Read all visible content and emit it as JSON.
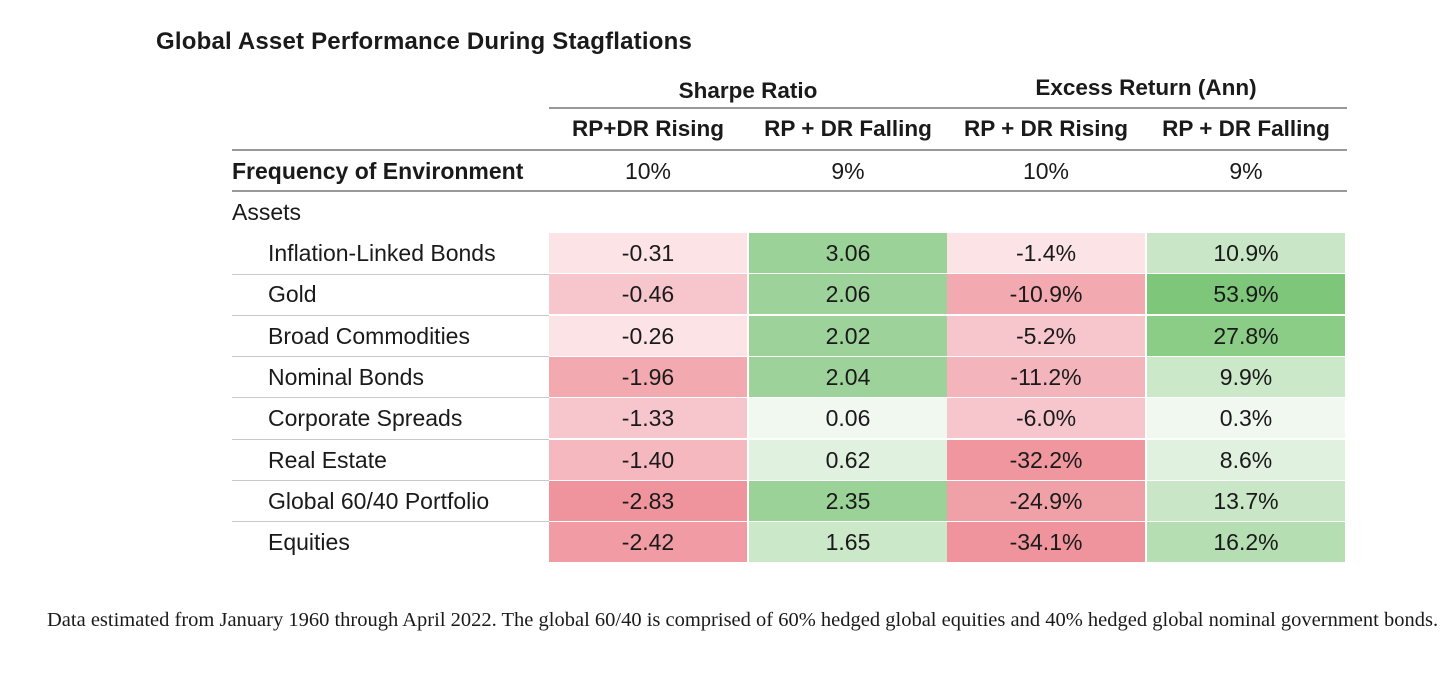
{
  "chart_data": {
    "type": "table",
    "title": "Global Asset Performance During Stagflations",
    "group_headers": [
      "Sharpe Ratio",
      "Excess Return (Ann)"
    ],
    "columns": [
      "RP+DR Rising",
      "RP + DR Falling",
      "RP + DR Rising",
      "RP + DR Falling"
    ],
    "frequency_row": {
      "label": "Frequency of Environment",
      "values": [
        "10%",
        "9%",
        "10%",
        "9%"
      ]
    },
    "section_label": "Assets",
    "rows": [
      {
        "label": "Inflation-Linked Bonds",
        "values": [
          "-0.31",
          "3.06",
          "-1.4%",
          "10.9%"
        ],
        "colors": [
          "#fbe3e6",
          "#9bd298",
          "#fbe3e6",
          "#c9e7c7"
        ]
      },
      {
        "label": "Gold",
        "values": [
          "-0.46",
          "2.06",
          "-10.9%",
          "53.9%"
        ],
        "colors": [
          "#f7c6cc",
          "#9dd39a",
          "#f3a9b0",
          "#7ec67a"
        ]
      },
      {
        "label": "Broad Commodities",
        "values": [
          "-0.26",
          "2.02",
          "-5.2%",
          "27.8%"
        ],
        "colors": [
          "#fbe3e6",
          "#9dd39a",
          "#f7c6cc",
          "#8bcc87"
        ]
      },
      {
        "label": "Nominal Bonds",
        "values": [
          "-1.96",
          "2.04",
          "-11.2%",
          "9.9%"
        ],
        "colors": [
          "#f3a9b0",
          "#9dd39a",
          "#f3b5bb",
          "#cbe8c9"
        ]
      },
      {
        "label": "Corporate Spreads",
        "values": [
          "-1.33",
          "0.06",
          "-6.0%",
          "0.3%"
        ],
        "colors": [
          "#f7c6cc",
          "#f1f8f0",
          "#f7c6cc",
          "#f1f8f0"
        ]
      },
      {
        "label": "Real Estate",
        "values": [
          "-1.40",
          "0.62",
          "-32.2%",
          "8.6%"
        ],
        "colors": [
          "#f5b8be",
          "#e1f1df",
          "#ef969e",
          "#e1f1df"
        ]
      },
      {
        "label": "Global 60/40 Portfolio",
        "values": [
          "-2.83",
          "2.35",
          "-24.9%",
          "13.7%"
        ],
        "colors": [
          "#ef949c",
          "#9bd298",
          "#f0a0a7",
          "#c9e7c7"
        ]
      },
      {
        "label": "Equities",
        "values": [
          "-2.42",
          "1.65",
          "-34.1%",
          "16.2%"
        ],
        "colors": [
          "#f19ca4",
          "#cbe8c9",
          "#ef949c",
          "#b5dfb2"
        ]
      }
    ]
  },
  "footnote": "Data estimated from January 1960 through April 2022. The global 60/40 is comprised of 60% hedged global equities and 40% hedged global nominal government bonds."
}
